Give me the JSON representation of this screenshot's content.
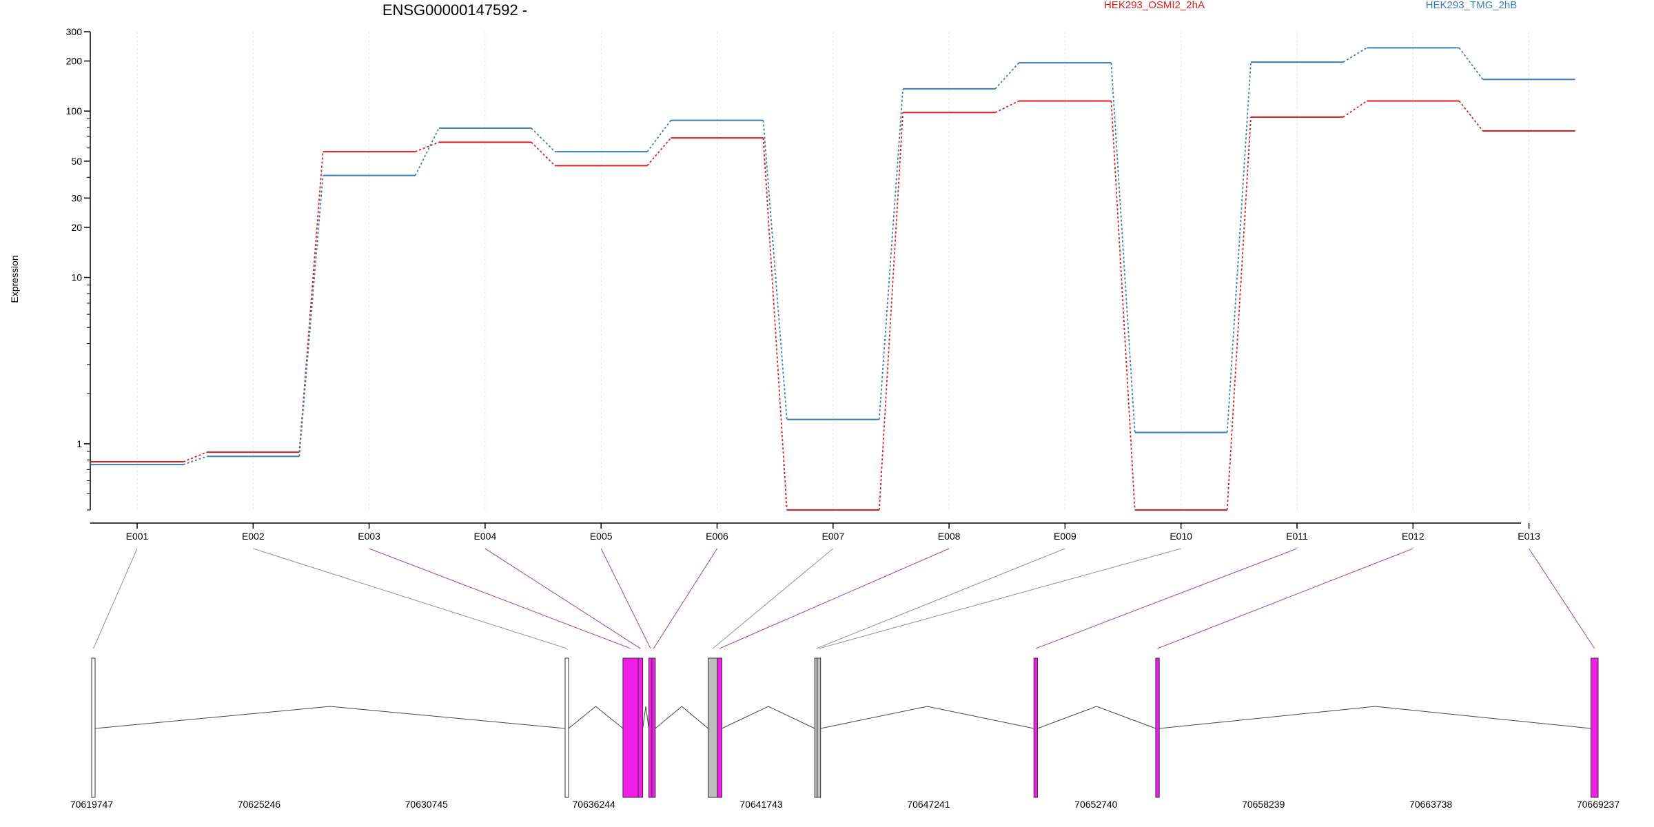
{
  "chart_data": {
    "type": "line",
    "title": "ENSG00000147592 -",
    "ylabel": "Expression",
    "xlabel": "",
    "yscale": "log",
    "ylim": [
      0.4,
      300
    ],
    "yticks": [
      300,
      200,
      100,
      50,
      30,
      20,
      10,
      1
    ],
    "grid": "vertical-dotted",
    "legend_position": "top",
    "categories": [
      "E001",
      "E002",
      "E003",
      "E004",
      "E005",
      "E006",
      "E007",
      "E008",
      "E009",
      "E010",
      "E011",
      "E012",
      "E013"
    ],
    "series": [
      {
        "name": "HEK293_OSMI2_2hA",
        "color": "#e41a1c",
        "values": [
          0.78,
          0.89,
          57,
          65,
          47,
          69,
          0.4,
          98,
          115,
          0.4,
          92,
          115,
          76
        ]
      },
      {
        "name": "HEK293_TMG_2hB",
        "color": "#377eb8",
        "values": [
          0.75,
          0.84,
          41,
          79,
          57,
          88,
          1.4,
          136,
          195,
          1.17,
          197,
          240,
          155
        ]
      }
    ],
    "gene_model": {
      "coordinate_ticks": [
        "70619747",
        "70625246",
        "70630745",
        "70636244",
        "70641743",
        "70647241",
        "70652740",
        "70658239",
        "70663738",
        "70669237"
      ],
      "coordinate_range": [
        70619747,
        70669237
      ],
      "exons": [
        {
          "id": "E001",
          "start": 70619747,
          "end": 70619800,
          "color": "#ffffff",
          "tested": false
        },
        {
          "id": "E002",
          "start": 70635300,
          "end": 70635380,
          "color": "#ffffff",
          "tested": false
        },
        {
          "id": "E003",
          "start": 70637200,
          "end": 70637700,
          "color": "#f21ee8",
          "tested": true
        },
        {
          "id": "E004",
          "start": 70637700,
          "end": 70637850,
          "color": "#f21ee8",
          "tested": true
        },
        {
          "id": "E005",
          "start": 70638050,
          "end": 70638150,
          "color": "#f21ee8",
          "tested": true
        },
        {
          "id": "E006",
          "start": 70638150,
          "end": 70638200,
          "color": "#f21ee8",
          "tested": true
        },
        {
          "id": "E007",
          "start": 70640000,
          "end": 70640300,
          "color": "#bebebe",
          "tested": false
        },
        {
          "id": "E008",
          "start": 70640300,
          "end": 70640450,
          "color": "#f21ee8",
          "tested": true
        },
        {
          "id": "E009",
          "start": 70643500,
          "end": 70643580,
          "color": "#bebebe",
          "tested": false
        },
        {
          "id": "E010",
          "start": 70643580,
          "end": 70643680,
          "color": "#bebebe",
          "tested": false
        },
        {
          "id": "E011",
          "start": 70650700,
          "end": 70650820,
          "color": "#f21ee8",
          "tested": true
        },
        {
          "id": "E012",
          "start": 70654700,
          "end": 70654820,
          "color": "#f21ee8",
          "tested": true
        },
        {
          "id": "E013",
          "start": 70669000,
          "end": 70669237,
          "color": "#f21ee8",
          "tested": true
        }
      ]
    }
  }
}
